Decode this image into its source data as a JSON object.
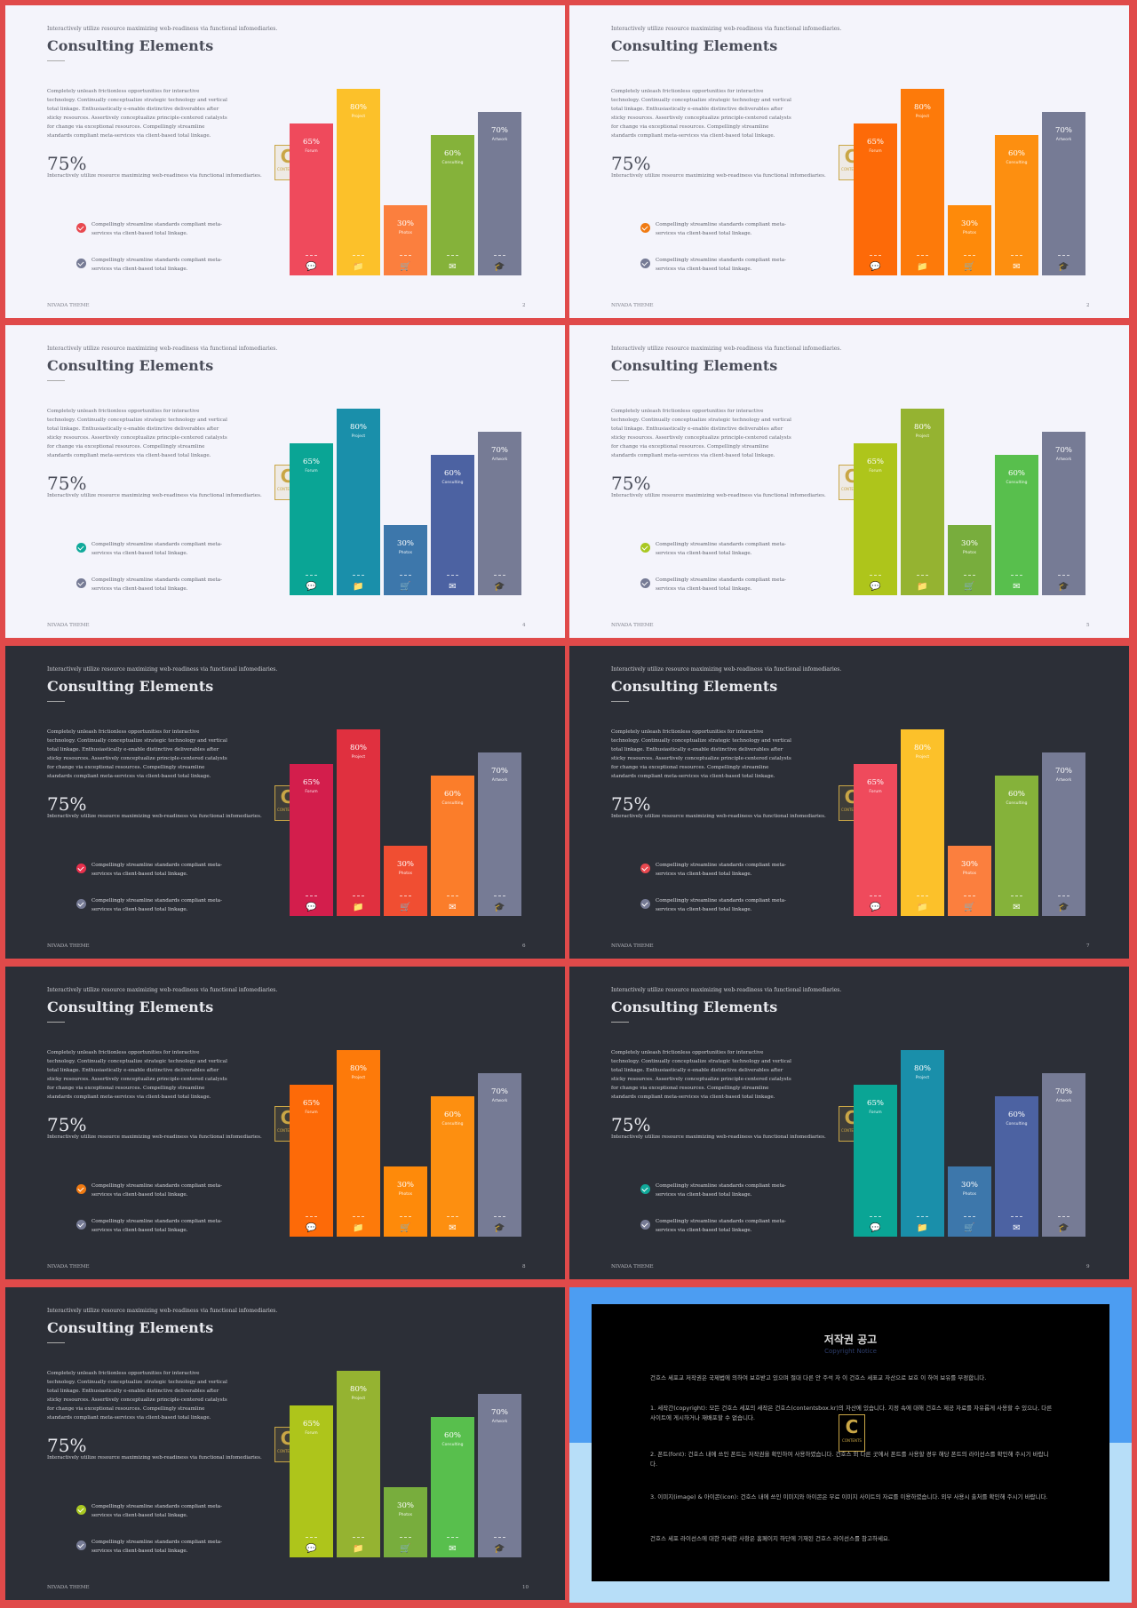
{
  "slide_text": {
    "kicker": "Interactively utilize resource maximizing web-readiness via functional infomediaries.",
    "title": "Consulting Elements",
    "paragraph": "Completely unleash frictionless opportunities for interactive technology. Continually conceptualize strategic technology and vertical total linkage. Enthusiastically e-enable distinctive deliverables after sticky resources. Assertively conceptualize principle-centered catalysts for change via exceptional resources. Compellingly streamline standards compliant meta-services via client-based total linkage.",
    "stat_value": "75%",
    "stat_note": "Interactively utilize resource maximizing web-readiness via functional infomediaries.",
    "check_item_1": "Compellingly streamline standards compliant meta-services via client-based total linkage.",
    "check_item_2": "Compellingly streamline standards compliant meta-services via client-based total linkage.",
    "footer": "NIVADA THEME",
    "stamp_letter": "C",
    "stamp_text": "CONTENTS"
  },
  "chart_data": {
    "type": "bar",
    "categories": [
      "Forum",
      "Project",
      "Photos",
      "Consulting",
      "Artwork"
    ],
    "values": [
      65,
      80,
      30,
      60,
      70
    ],
    "value_labels": [
      "65%",
      "80%",
      "30%",
      "60%",
      "70%"
    ],
    "icons": [
      "chat-icon",
      "folder-icon",
      "cart-icon",
      "envelope-icon",
      "graduation-cap-icon"
    ]
  },
  "slides": [
    {
      "theme": "light",
      "page": "2",
      "colors": [
        "#ef4a5c",
        "#fcc12a",
        "#fb7f3e",
        "#85b23a",
        "#767b95"
      ],
      "check_color": "#e8484f"
    },
    {
      "theme": "light",
      "page": "2",
      "colors": [
        "#fd6a08",
        "#fd7a0a",
        "#fe8a0a",
        "#fd8f10",
        "#767b95"
      ],
      "check_color": "#f07a12"
    },
    {
      "theme": "light",
      "page": "4",
      "colors": [
        "#0aa595",
        "#1a8faa",
        "#3d77ab",
        "#4c62a2",
        "#767b95"
      ],
      "check_color": "#10a99a"
    },
    {
      "theme": "light",
      "page": "5",
      "colors": [
        "#aec51b",
        "#95b331",
        "#78ad3d",
        "#58bf4d",
        "#767b95"
      ],
      "check_color": "#a9c821"
    },
    {
      "theme": "dark",
      "page": "6",
      "colors": [
        "#d31e4c",
        "#e0303f",
        "#f04e32",
        "#fb7d2a",
        "#767b95"
      ],
      "check_color": "#e8304c"
    },
    {
      "theme": "dark",
      "page": "7",
      "colors": [
        "#ef4a5c",
        "#fcc12a",
        "#fb7f3e",
        "#85b23a",
        "#767b95"
      ],
      "check_color": "#e8484f"
    },
    {
      "theme": "dark",
      "page": "8",
      "colors": [
        "#fd6a08",
        "#fd7a0a",
        "#fe8a0a",
        "#fd8f10",
        "#767b95"
      ],
      "check_color": "#f07a12"
    },
    {
      "theme": "dark",
      "page": "9",
      "colors": [
        "#0aa595",
        "#1a8faa",
        "#3d77ab",
        "#4c62a2",
        "#767b95"
      ],
      "check_color": "#10a99a"
    },
    {
      "theme": "dark",
      "page": "10",
      "colors": [
        "#aec51b",
        "#95b331",
        "#78ad3d",
        "#58bf4d",
        "#767b95"
      ],
      "check_color": "#a9c821"
    }
  ],
  "notice": {
    "title": "저작권 공고",
    "subtitle": "Copyright Notice",
    "p1": "건호스 세포교 저작권은 국제법에 의하여 보호받고 있으며 절대 다른 안 주석 자 이 건호스 세표교 자산으로 보호 이 하여 보유를 부정합니다.",
    "p2": "1. 세작간(copyright): 모든 건호스 세포의 세작은 건호스(contentsbox.kr)의 자산에 있습니다. 지정 속에 대해 건호스 제공 자료를 자유롭게 사용할 수 있으나, 다른 사이트에 게시하거나 재배포할 수 없습니다.",
    "p3": "2. 폰트(font): 건호스 내에 쓰인 폰트는 저작권을 확인하여 사용하였습니다. 건호스 외 다른 곳에서 폰트를 사용할 경우 해당 폰트의 라이선스를 확인해 주시기 바랍니다.",
    "p4": "3. 이미지(image) & 아이콘(icon): 건호스 내에 쓰인 이미지와 아이콘은 무료 이미지 사이트의 자료를 이용하였습니다. 외부 사용시 출처를 확인해 주시기 바랍니다.",
    "p5": "건호스 세포 라이선스에 대한 자세한 사항은 홈페이지 하단에 기재된 건호스 라이선스를 참고하세요.",
    "stamp_letter": "C",
    "stamp_text": "CONTENTS"
  }
}
